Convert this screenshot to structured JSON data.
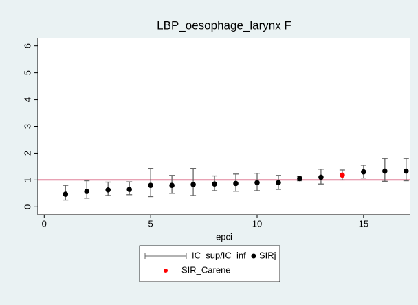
{
  "chart_data": {
    "type": "errorbar",
    "title": "LBP_oesophage_larynx F",
    "x_label": "epci",
    "x": [
      1,
      2,
      3,
      4,
      5,
      6,
      7,
      8,
      9,
      10,
      11,
      12,
      13,
      14,
      15,
      16,
      17
    ],
    "series": [
      {
        "name": "IC_sup/IC_inf",
        "color": "#666666",
        "low": [
          0.25,
          0.32,
          0.42,
          0.45,
          0.38,
          0.5,
          0.42,
          0.6,
          0.58,
          0.6,
          0.65,
          0.97,
          0.85,
          1.0,
          1.07,
          0.95,
          0.97
        ],
        "high": [
          0.8,
          0.97,
          0.92,
          0.93,
          1.43,
          1.17,
          1.43,
          1.15,
          1.22,
          1.25,
          1.17,
          1.12,
          1.4,
          1.37,
          1.55,
          1.8,
          1.8
        ]
      },
      {
        "name": "SIRj",
        "color": "#000000",
        "values": [
          0.47,
          0.57,
          0.63,
          0.65,
          0.8,
          0.8,
          0.83,
          0.85,
          0.87,
          0.9,
          0.9,
          1.05,
          1.1,
          null,
          1.3,
          1.33,
          1.33
        ]
      },
      {
        "name": "SIR_Carene",
        "color": "#ff0000",
        "values": [
          null,
          null,
          null,
          null,
          null,
          null,
          null,
          null,
          null,
          null,
          null,
          null,
          null,
          1.18,
          null,
          null,
          null
        ]
      }
    ],
    "refline": {
      "value": 1,
      "color": "#c10534"
    },
    "xlim": [
      -0.3,
      17.2
    ],
    "ylim": [
      -0.3,
      6.3
    ],
    "xticks": [
      0,
      5,
      10,
      15
    ],
    "yticks": [
      0,
      1,
      2,
      3,
      4,
      5,
      6
    ]
  }
}
